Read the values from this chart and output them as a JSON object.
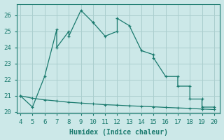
{
  "xlabel": "Humidex (Indice chaleur)",
  "x_upper": [
    4,
    5,
    6,
    7,
    7,
    8,
    8,
    9,
    10,
    10,
    11,
    12,
    12,
    13,
    14,
    15,
    15,
    16,
    17,
    17,
    18,
    18,
    19,
    19,
    20
  ],
  "y_upper": [
    21.0,
    20.3,
    22.2,
    25.1,
    24.0,
    25.0,
    24.7,
    26.3,
    25.55,
    25.55,
    24.7,
    25.0,
    25.8,
    25.35,
    23.8,
    23.55,
    23.35,
    22.2,
    22.2,
    21.6,
    21.6,
    20.8,
    20.8,
    20.3,
    20.3
  ],
  "x_lower": [
    4,
    5,
    6,
    7,
    8,
    9,
    10,
    11,
    12,
    13,
    14,
    15,
    16,
    17,
    18,
    19,
    20
  ],
  "y_lower": [
    21.0,
    20.85,
    20.75,
    20.68,
    20.6,
    20.55,
    20.5,
    20.45,
    20.42,
    20.38,
    20.35,
    20.32,
    20.28,
    20.25,
    20.22,
    20.18,
    20.15
  ],
  "line_color": "#1a7a6e",
  "bg_color": "#cce8e8",
  "grid_color": "#aacece",
  "ylim": [
    19.9,
    26.7
  ],
  "xlim": [
    3.7,
    20.5
  ],
  "yticks": [
    20,
    21,
    22,
    23,
    24,
    25,
    26
  ],
  "xticks": [
    4,
    5,
    6,
    7,
    8,
    9,
    10,
    11,
    12,
    13,
    14,
    15,
    16,
    17,
    18,
    19,
    20
  ],
  "xlabel_fontsize": 7,
  "tick_fontsize": 6.5
}
